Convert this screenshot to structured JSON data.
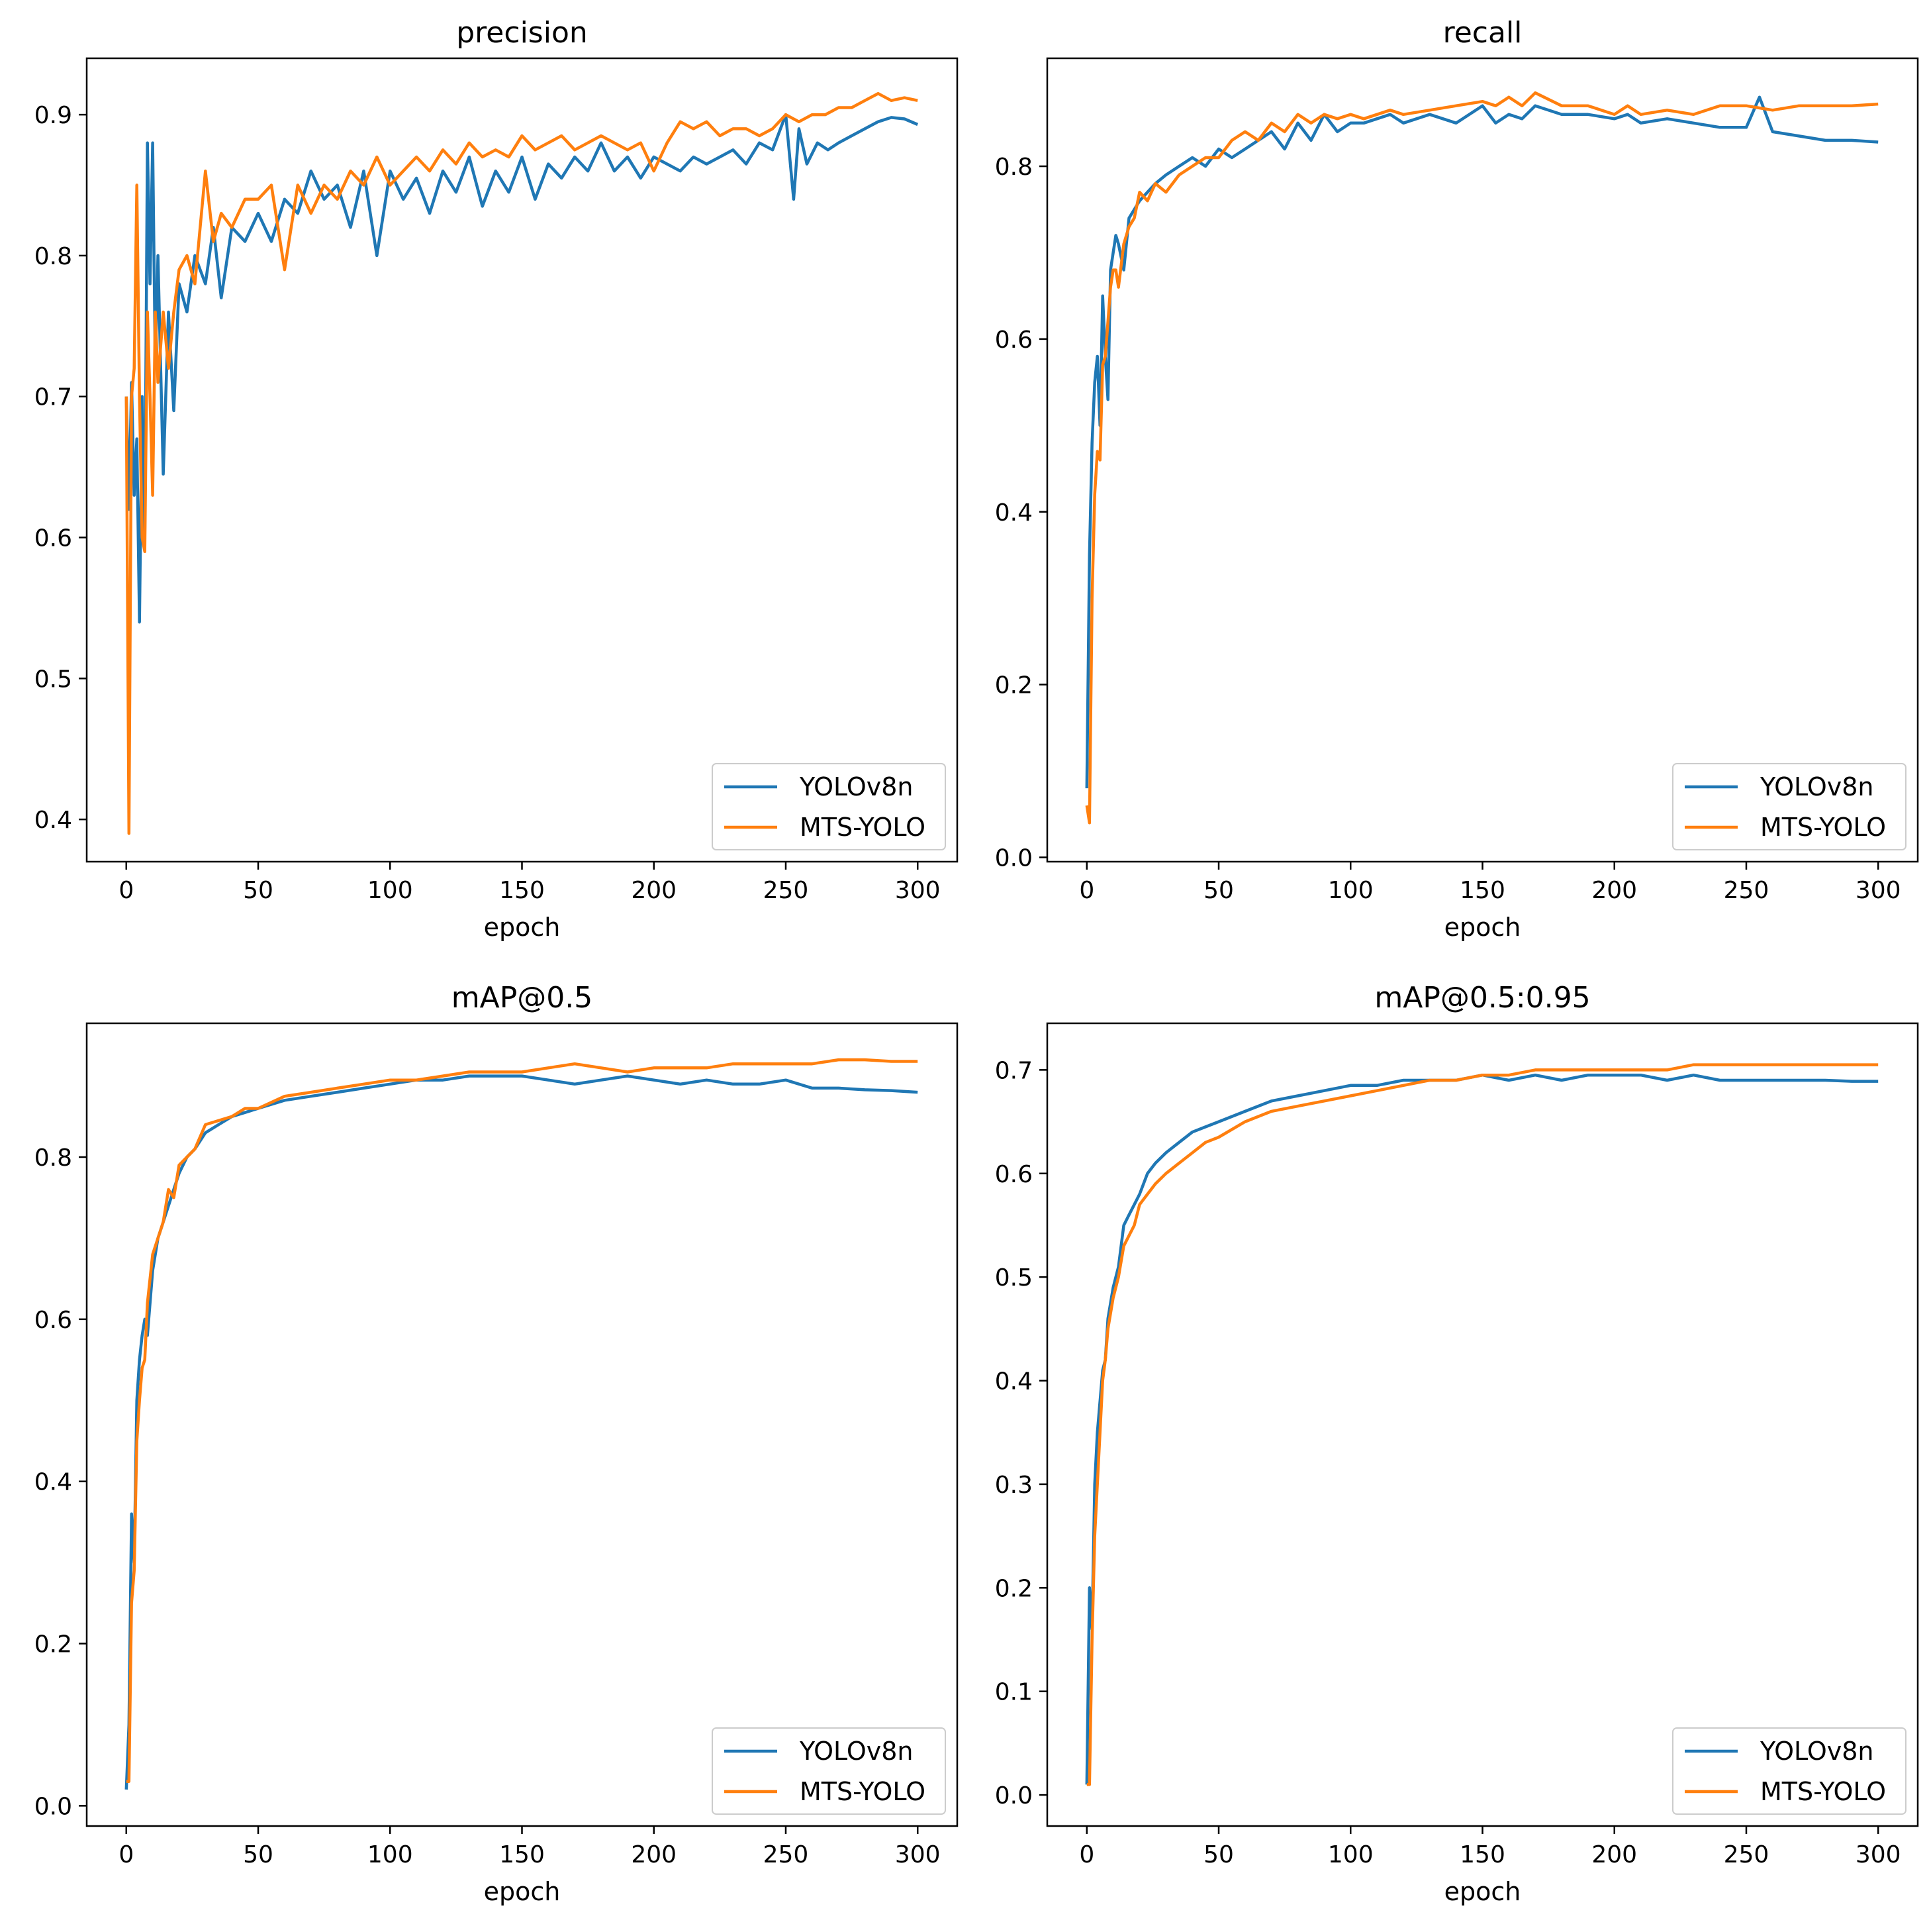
{
  "colors": {
    "yolov8n": "#1f77b4",
    "mts_yolo": "#ff7f0e"
  },
  "chart_data": [
    {
      "type": "line",
      "title": "precision",
      "xlabel": "epoch",
      "ylabel": "",
      "xlim": [
        -15,
        315
      ],
      "ylim": [
        0.37,
        0.94
      ],
      "xticks": [
        "0",
        "50",
        "100",
        "150",
        "200",
        "250",
        "300"
      ],
      "yticks": [
        "0.4",
        "0.5",
        "0.6",
        "0.7",
        "0.8",
        "0.9"
      ],
      "legend": "lower-right",
      "series": [
        {
          "name": "YOLOv8n",
          "color": "#1f77b4",
          "x": [
            0,
            1,
            2,
            3,
            4,
            5,
            6,
            7,
            8,
            9,
            10,
            11,
            12,
            14,
            16,
            18,
            20,
            23,
            26,
            30,
            33,
            36,
            40,
            45,
            50,
            55,
            60,
            65,
            70,
            75,
            80,
            85,
            90,
            95,
            100,
            105,
            110,
            115,
            120,
            125,
            130,
            135,
            140,
            145,
            150,
            155,
            160,
            165,
            170,
            175,
            180,
            185,
            190,
            195,
            200,
            205,
            210,
            215,
            220,
            225,
            230,
            235,
            240,
            245,
            250,
            253,
            255,
            258,
            262,
            266,
            270,
            275,
            280,
            285,
            290,
            295,
            300
          ],
          "values": [
            0.7,
            0.62,
            0.71,
            0.63,
            0.67,
            0.54,
            0.7,
            0.6,
            0.88,
            0.78,
            0.88,
            0.72,
            0.8,
            0.645,
            0.76,
            0.69,
            0.78,
            0.76,
            0.8,
            0.78,
            0.82,
            0.77,
            0.82,
            0.81,
            0.83,
            0.81,
            0.84,
            0.83,
            0.86,
            0.84,
            0.85,
            0.82,
            0.86,
            0.8,
            0.86,
            0.84,
            0.855,
            0.83,
            0.86,
            0.845,
            0.87,
            0.835,
            0.86,
            0.845,
            0.87,
            0.84,
            0.865,
            0.855,
            0.87,
            0.86,
            0.88,
            0.86,
            0.87,
            0.855,
            0.87,
            0.865,
            0.86,
            0.87,
            0.865,
            0.87,
            0.875,
            0.865,
            0.88,
            0.875,
            0.9,
            0.84,
            0.89,
            0.865,
            0.88,
            0.875,
            0.88,
            0.885,
            0.89,
            0.895,
            0.898,
            0.897,
            0.893
          ]
        },
        {
          "name": "MTS-YOLO",
          "color": "#ff7f0e",
          "x": [
            0,
            1,
            2,
            3,
            4,
            5,
            6,
            7,
            8,
            9,
            10,
            11,
            12,
            14,
            16,
            18,
            20,
            23,
            26,
            30,
            33,
            36,
            40,
            45,
            50,
            55,
            60,
            65,
            70,
            75,
            80,
            85,
            90,
            95,
            100,
            105,
            110,
            115,
            120,
            125,
            130,
            135,
            140,
            145,
            150,
            155,
            160,
            165,
            170,
            175,
            180,
            185,
            190,
            195,
            200,
            205,
            210,
            215,
            220,
            225,
            230,
            235,
            240,
            245,
            250,
            255,
            260,
            265,
            270,
            275,
            280,
            285,
            290,
            295,
            300
          ],
          "values": [
            0.7,
            0.39,
            0.7,
            0.72,
            0.85,
            0.7,
            0.6,
            0.59,
            0.76,
            0.7,
            0.63,
            0.76,
            0.71,
            0.76,
            0.72,
            0.76,
            0.79,
            0.8,
            0.78,
            0.86,
            0.81,
            0.83,
            0.82,
            0.84,
            0.84,
            0.85,
            0.79,
            0.85,
            0.83,
            0.85,
            0.84,
            0.86,
            0.85,
            0.87,
            0.85,
            0.86,
            0.87,
            0.86,
            0.875,
            0.865,
            0.88,
            0.87,
            0.875,
            0.87,
            0.885,
            0.875,
            0.88,
            0.885,
            0.875,
            0.88,
            0.885,
            0.88,
            0.875,
            0.88,
            0.86,
            0.88,
            0.895,
            0.89,
            0.895,
            0.885,
            0.89,
            0.89,
            0.885,
            0.89,
            0.9,
            0.895,
            0.9,
            0.9,
            0.905,
            0.905,
            0.91,
            0.915,
            0.91,
            0.912,
            0.91
          ]
        }
      ]
    },
    {
      "type": "line",
      "title": "recall",
      "xlabel": "epoch",
      "ylabel": "",
      "xlim": [
        -15,
        315
      ],
      "ylim": [
        -0.005,
        0.925
      ],
      "xticks": [
        "0",
        "50",
        "100",
        "150",
        "200",
        "250",
        "300"
      ],
      "yticks": [
        "0.0",
        "0.2",
        "0.4",
        "0.6",
        "0.8"
      ],
      "legend": "lower-right",
      "series": [
        {
          "name": "YOLOv8n",
          "color": "#1f77b4",
          "x": [
            0,
            1,
            2,
            3,
            4,
            5,
            6,
            7,
            8,
            9,
            10,
            11,
            12,
            14,
            16,
            18,
            20,
            23,
            26,
            30,
            35,
            40,
            45,
            50,
            55,
            60,
            65,
            70,
            75,
            80,
            85,
            90,
            95,
            100,
            105,
            110,
            115,
            120,
            130,
            140,
            150,
            155,
            160,
            165,
            170,
            180,
            190,
            200,
            205,
            210,
            220,
            230,
            240,
            250,
            255,
            260,
            270,
            280,
            290,
            300
          ],
          "values": [
            0.08,
            0.35,
            0.48,
            0.55,
            0.58,
            0.5,
            0.65,
            0.58,
            0.53,
            0.68,
            0.7,
            0.72,
            0.71,
            0.68,
            0.74,
            0.75,
            0.76,
            0.77,
            0.78,
            0.79,
            0.8,
            0.81,
            0.8,
            0.82,
            0.81,
            0.82,
            0.83,
            0.84,
            0.82,
            0.85,
            0.83,
            0.86,
            0.84,
            0.85,
            0.85,
            0.855,
            0.86,
            0.85,
            0.86,
            0.85,
            0.87,
            0.85,
            0.86,
            0.855,
            0.87,
            0.86,
            0.86,
            0.855,
            0.86,
            0.85,
            0.855,
            0.85,
            0.845,
            0.845,
            0.88,
            0.84,
            0.835,
            0.83,
            0.83,
            0.828
          ]
        },
        {
          "name": "MTS-YOLO",
          "color": "#ff7f0e",
          "x": [
            0,
            1,
            2,
            3,
            4,
            5,
            6,
            7,
            8,
            9,
            10,
            11,
            12,
            14,
            16,
            18,
            20,
            23,
            26,
            30,
            35,
            40,
            45,
            50,
            55,
            60,
            65,
            70,
            75,
            80,
            85,
            90,
            95,
            100,
            105,
            110,
            115,
            120,
            130,
            140,
            150,
            155,
            160,
            165,
            170,
            180,
            190,
            200,
            205,
            210,
            220,
            230,
            240,
            250,
            260,
            270,
            280,
            290,
            300
          ],
          "values": [
            0.06,
            0.04,
            0.3,
            0.42,
            0.47,
            0.46,
            0.57,
            0.58,
            0.62,
            0.66,
            0.68,
            0.68,
            0.66,
            0.71,
            0.73,
            0.74,
            0.77,
            0.76,
            0.78,
            0.77,
            0.79,
            0.8,
            0.81,
            0.81,
            0.83,
            0.84,
            0.83,
            0.85,
            0.84,
            0.86,
            0.85,
            0.86,
            0.855,
            0.86,
            0.855,
            0.86,
            0.865,
            0.86,
            0.865,
            0.87,
            0.875,
            0.87,
            0.88,
            0.87,
            0.885,
            0.87,
            0.87,
            0.86,
            0.87,
            0.86,
            0.865,
            0.86,
            0.87,
            0.87,
            0.865,
            0.87,
            0.87,
            0.87,
            0.872
          ]
        }
      ]
    },
    {
      "type": "line",
      "title": "mAP@0.5",
      "xlabel": "epoch",
      "ylabel": "",
      "xlim": [
        -15,
        315
      ],
      "ylim": [
        -0.025,
        0.965
      ],
      "xticks": [
        "0",
        "50",
        "100",
        "150",
        "200",
        "250",
        "300"
      ],
      "yticks": [
        "0.0",
        "0.2",
        "0.4",
        "0.6",
        "0.8"
      ],
      "legend": "lower-right",
      "series": [
        {
          "name": "YOLOv8n",
          "color": "#1f77b4",
          "x": [
            0,
            1,
            2,
            3,
            4,
            5,
            6,
            7,
            8,
            10,
            12,
            14,
            16,
            18,
            20,
            23,
            26,
            30,
            35,
            40,
            45,
            50,
            60,
            70,
            80,
            90,
            100,
            110,
            120,
            130,
            140,
            150,
            160,
            170,
            180,
            190,
            200,
            210,
            220,
            230,
            240,
            250,
            260,
            270,
            280,
            290,
            300
          ],
          "values": [
            0.02,
            0.1,
            0.36,
            0.3,
            0.5,
            0.55,
            0.58,
            0.6,
            0.58,
            0.66,
            0.7,
            0.72,
            0.74,
            0.76,
            0.78,
            0.8,
            0.81,
            0.83,
            0.84,
            0.85,
            0.855,
            0.86,
            0.87,
            0.875,
            0.88,
            0.885,
            0.89,
            0.895,
            0.895,
            0.9,
            0.9,
            0.9,
            0.895,
            0.89,
            0.895,
            0.9,
            0.895,
            0.89,
            0.895,
            0.89,
            0.89,
            0.895,
            0.885,
            0.885,
            0.883,
            0.882,
            0.88
          ]
        },
        {
          "name": "MTS-YOLO",
          "color": "#ff7f0e",
          "x": [
            0,
            1,
            2,
            3,
            4,
            5,
            6,
            7,
            8,
            10,
            12,
            14,
            16,
            18,
            20,
            23,
            26,
            30,
            35,
            40,
            45,
            50,
            60,
            70,
            80,
            90,
            100,
            110,
            120,
            130,
            140,
            150,
            160,
            170,
            180,
            190,
            200,
            210,
            220,
            230,
            240,
            250,
            260,
            270,
            280,
            290,
            300
          ],
          "values": [
            0.03,
            0.03,
            0.25,
            0.29,
            0.45,
            0.5,
            0.54,
            0.55,
            0.62,
            0.68,
            0.7,
            0.72,
            0.76,
            0.75,
            0.79,
            0.8,
            0.81,
            0.84,
            0.845,
            0.85,
            0.86,
            0.86,
            0.875,
            0.88,
            0.885,
            0.89,
            0.895,
            0.895,
            0.9,
            0.905,
            0.905,
            0.905,
            0.91,
            0.915,
            0.91,
            0.905,
            0.91,
            0.91,
            0.91,
            0.915,
            0.915,
            0.915,
            0.915,
            0.92,
            0.92,
            0.918,
            0.918
          ]
        }
      ]
    },
    {
      "type": "line",
      "title": "mAP@0.5:0.95",
      "xlabel": "epoch",
      "ylabel": "",
      "xlim": [
        -15,
        315
      ],
      "ylim": [
        -0.03,
        0.745
      ],
      "xticks": [
        "0",
        "50",
        "100",
        "150",
        "200",
        "250",
        "300"
      ],
      "yticks": [
        "0.0",
        "0.1",
        "0.2",
        "0.3",
        "0.4",
        "0.5",
        "0.6",
        "0.7"
      ],
      "legend": "lower-right",
      "series": [
        {
          "name": "YOLOv8n",
          "color": "#1f77b4",
          "x": [
            0,
            1,
            2,
            3,
            4,
            5,
            6,
            7,
            8,
            10,
            12,
            14,
            16,
            18,
            20,
            23,
            26,
            30,
            35,
            40,
            45,
            50,
            60,
            70,
            80,
            90,
            100,
            110,
            120,
            130,
            140,
            150,
            160,
            170,
            180,
            190,
            200,
            210,
            220,
            230,
            240,
            250,
            260,
            270,
            280,
            290,
            300
          ],
          "values": [
            0.01,
            0.2,
            0.16,
            0.3,
            0.35,
            0.38,
            0.41,
            0.42,
            0.46,
            0.49,
            0.51,
            0.55,
            0.56,
            0.57,
            0.58,
            0.6,
            0.61,
            0.62,
            0.63,
            0.64,
            0.645,
            0.65,
            0.66,
            0.67,
            0.675,
            0.68,
            0.685,
            0.685,
            0.69,
            0.69,
            0.69,
            0.695,
            0.69,
            0.695,
            0.69,
            0.695,
            0.695,
            0.695,
            0.69,
            0.695,
            0.69,
            0.69,
            0.69,
            0.69,
            0.69,
            0.689,
            0.689
          ]
        },
        {
          "name": "MTS-YOLO",
          "color": "#ff7f0e",
          "x": [
            0,
            1,
            2,
            3,
            4,
            5,
            6,
            7,
            8,
            10,
            12,
            14,
            16,
            18,
            20,
            23,
            26,
            30,
            35,
            40,
            45,
            50,
            60,
            70,
            80,
            90,
            100,
            110,
            120,
            130,
            140,
            150,
            160,
            170,
            180,
            190,
            200,
            210,
            220,
            230,
            240,
            250,
            260,
            270,
            280,
            290,
            300
          ],
          "values": [
            0.01,
            0.01,
            0.15,
            0.25,
            0.3,
            0.35,
            0.4,
            0.42,
            0.45,
            0.48,
            0.5,
            0.53,
            0.54,
            0.55,
            0.57,
            0.58,
            0.59,
            0.6,
            0.61,
            0.62,
            0.63,
            0.635,
            0.65,
            0.66,
            0.665,
            0.67,
            0.675,
            0.68,
            0.685,
            0.69,
            0.69,
            0.695,
            0.695,
            0.7,
            0.7,
            0.7,
            0.7,
            0.7,
            0.7,
            0.705,
            0.705,
            0.705,
            0.705,
            0.705,
            0.705,
            0.705,
            0.705
          ]
        }
      ]
    }
  ]
}
